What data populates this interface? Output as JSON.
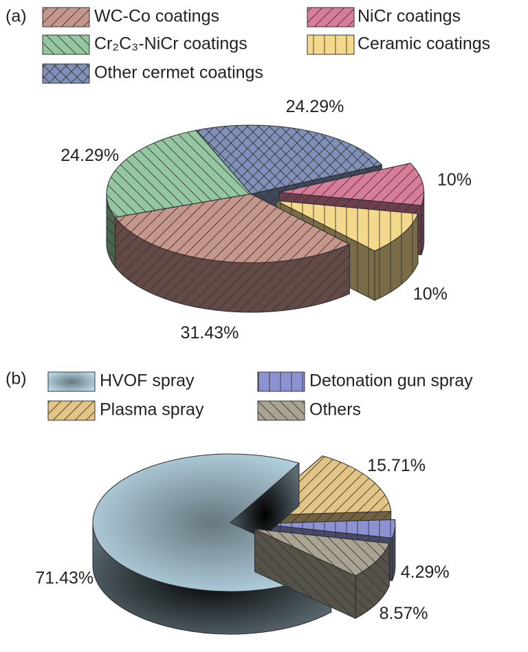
{
  "chart_data": [
    {
      "type": "pie",
      "panel_label": "(a)",
      "categories": [
        "WC-Co coatings",
        "Cr₂C₃-NiCr coatings",
        "Other cermet coatings",
        "NiCr coatings",
        "Ceramic coatings"
      ],
      "values": [
        31.43,
        24.29,
        24.29,
        10,
        10
      ],
      "value_labels": [
        "31.43%",
        "24.29%",
        "24.29%",
        "10%",
        "10%"
      ],
      "colors": [
        "#c4968c",
        "#93c7a0",
        "#7f91b8",
        "#d77d9a",
        "#f4d88c"
      ],
      "hatches": [
        "/",
        "\\",
        "x",
        "/",
        "|"
      ]
    },
    {
      "type": "pie",
      "panel_label": "(b)",
      "categories": [
        "HVOF spray",
        "Plasma spray",
        "Detonation gun spray",
        "Others"
      ],
      "values": [
        71.43,
        15.71,
        4.29,
        8.57
      ],
      "value_labels": [
        "71.43%",
        "15.71%",
        "4.29%",
        "8.57%"
      ],
      "colors": [
        "#b9d8e6",
        "#e2c487",
        "#8d92d2",
        "#aaa391"
      ],
      "hatches": [
        "none",
        "/",
        "|",
        "\\"
      ]
    }
  ]
}
